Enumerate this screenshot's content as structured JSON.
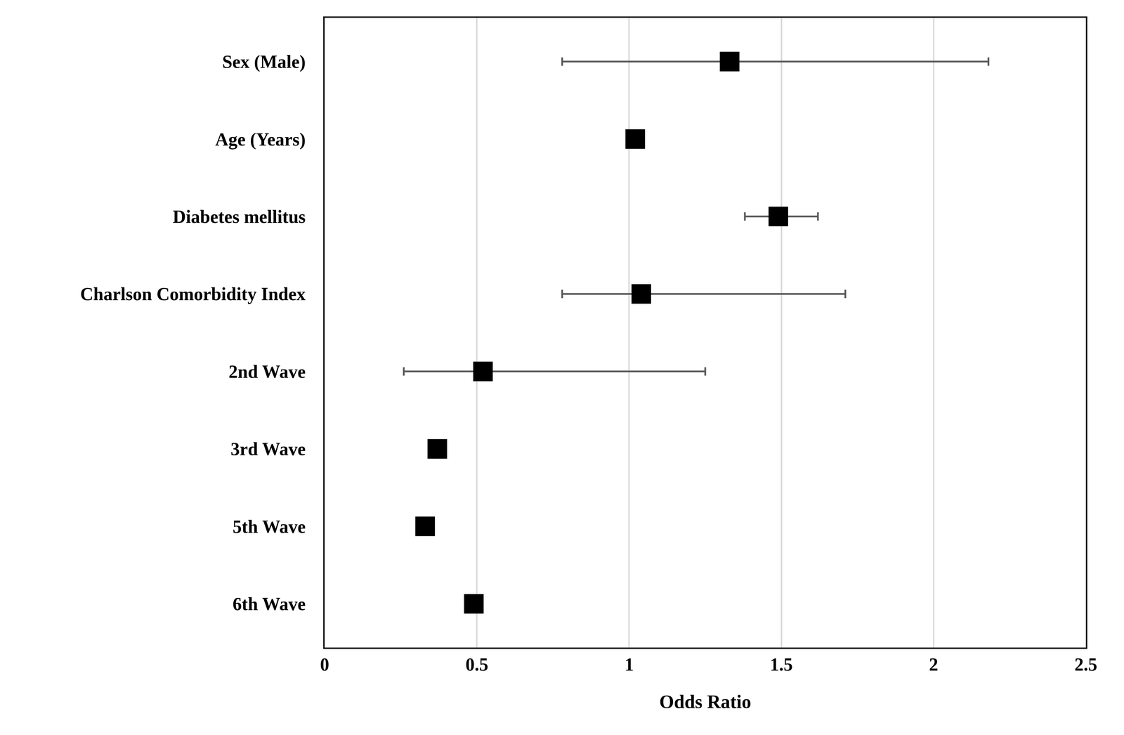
{
  "chart_data": {
    "type": "scatter",
    "orientation": "horizontal",
    "marker": "square",
    "color": "#000000",
    "x_label": "Odds Ratio",
    "categories": [
      "Sex (Male)",
      "Age (Years)",
      "Diabetes mellitus",
      "Charlson Comorbidity Index",
      "2nd Wave",
      "3rd Wave",
      "5th Wave",
      "6th Wave"
    ],
    "values": [
      1.33,
      1.02,
      1.49,
      1.04,
      0.52,
      0.37,
      0.33,
      0.49
    ],
    "ci_lower": [
      0.78,
      null,
      1.38,
      0.78,
      0.26,
      null,
      null,
      null
    ],
    "ci_upper": [
      2.18,
      null,
      1.62,
      1.71,
      1.25,
      null,
      null,
      null
    ],
    "xlim": [
      0,
      2.5
    ],
    "xticks": [
      0,
      0.5,
      1,
      1.5,
      2,
      2.5
    ],
    "grid": true
  }
}
